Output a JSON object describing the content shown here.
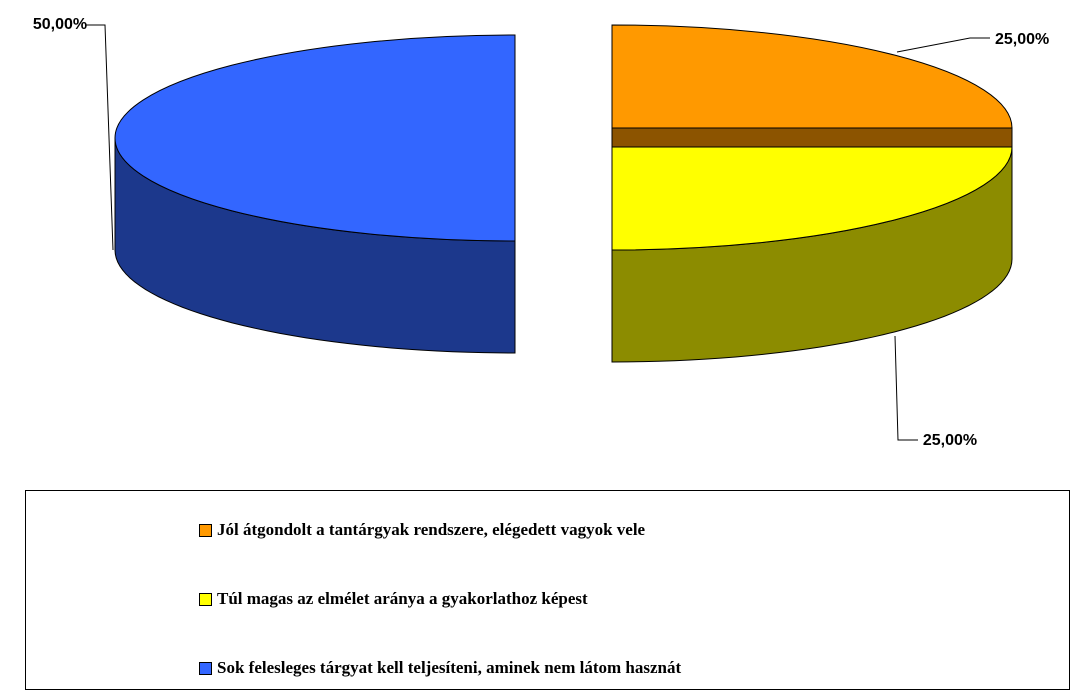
{
  "chart_data": {
    "type": "pie3d",
    "categories": [
      "Jól átgondolt a tantárgyak rendszere, elégedett vagyok vele",
      "Túl magas az elmélet aránya a gyakorlathoz képest",
      "Sok felesleges tárgyat kell teljesíteni, aminek nem látom hasznát"
    ],
    "values": [
      25,
      25,
      50
    ],
    "value_labels": [
      "25,00%",
      "25,00%",
      "50,00%"
    ],
    "colors": [
      "#FF9900",
      "#FFFF00",
      "#3366FF"
    ],
    "legend": "bottom"
  }
}
